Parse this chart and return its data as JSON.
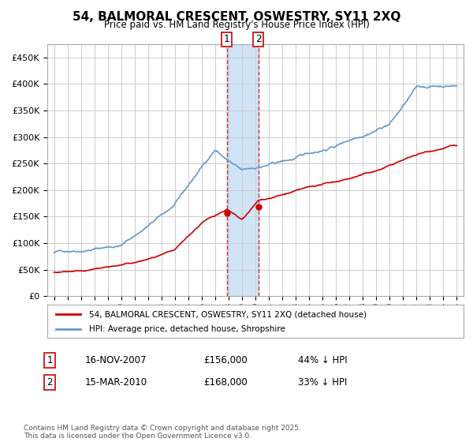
{
  "title": "54, BALMORAL CRESCENT, OSWESTRY, SY11 2XQ",
  "subtitle": "Price paid vs. HM Land Registry's House Price Index (HPI)",
  "red_label": "54, BALMORAL CRESCENT, OSWESTRY, SY11 2XQ (detached house)",
  "blue_label": "HPI: Average price, detached house, Shropshire",
  "marker1_date": "16-NOV-2007",
  "marker1_price": 156000,
  "marker1_pct": "44% ↓ HPI",
  "marker2_date": "15-MAR-2010",
  "marker2_price": 168000,
  "marker2_pct": "33% ↓ HPI",
  "marker1_x": 2007.88,
  "marker2_x": 2010.21,
  "red_color": "#cc0000",
  "blue_color": "#6699cc",
  "background_color": "#ffffff",
  "grid_color": "#cccccc",
  "shade_color": "#d0e4f7",
  "footnote": "Contains HM Land Registry data © Crown copyright and database right 2025.\nThis data is licensed under the Open Government Licence v3.0.",
  "ylim": [
    0,
    475000
  ],
  "xlim": [
    1994.5,
    2025.5
  ]
}
